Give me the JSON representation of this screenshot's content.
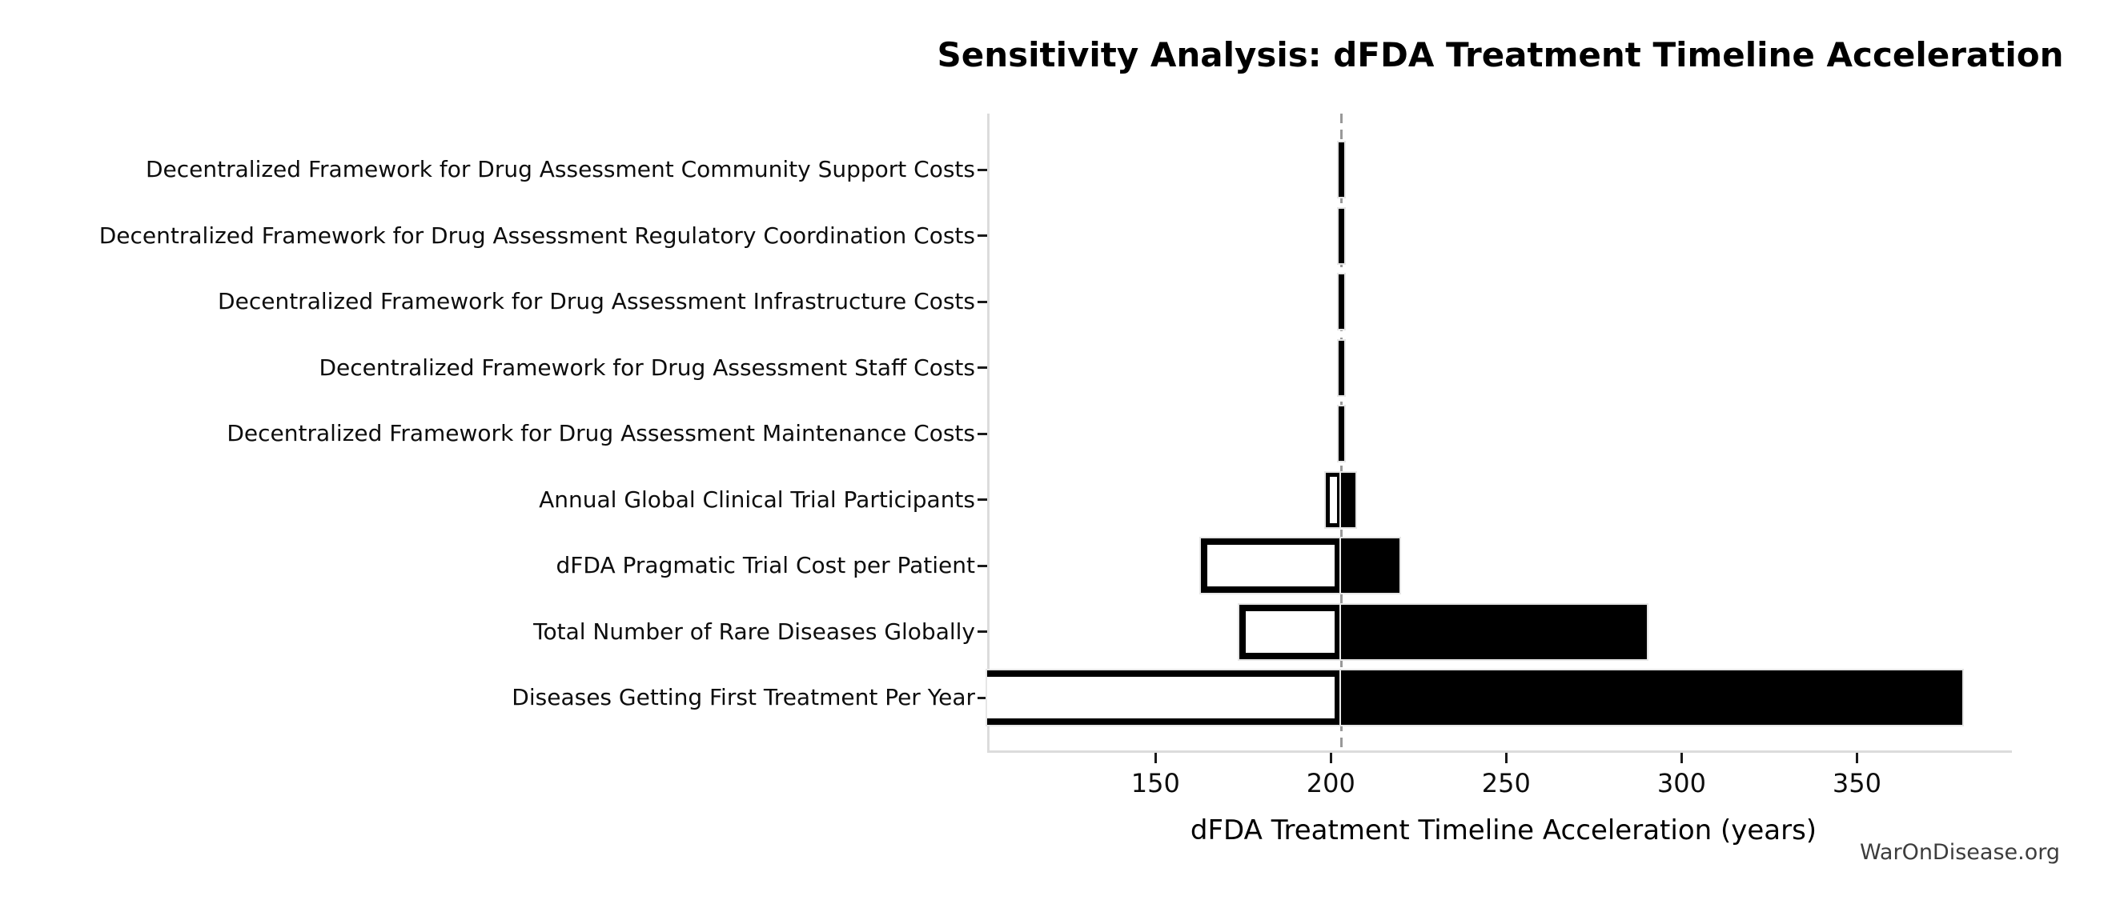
{
  "title": "Sensitivity Analysis: dFDA Treatment Timeline Acceleration",
  "watermark": "WarOnDisease.org",
  "colors": {
    "background": "#ffffff",
    "bar_high_fill": "#000000",
    "bar_low_fill": "#ffffff",
    "bar_border": "#000000",
    "baseline_dash": "#999999",
    "spine": "#dcdcdc",
    "tick": "#1a1a1a",
    "watermark_text": "#3d3d3d"
  },
  "chart_data": {
    "type": "bar",
    "subtype": "tornado-sensitivity",
    "orientation": "horizontal",
    "title": "Sensitivity Analysis: dFDA Treatment Timeline Acceleration",
    "xlabel": "dFDA Treatment Timeline Acceleration (years)",
    "ylabel": "",
    "x_ticks": [
      150,
      200,
      250,
      300,
      350
    ],
    "xlim": [
      102,
      393.5
    ],
    "baseline": 203,
    "baseline_style": "dashed-gray-vertical",
    "grid": false,
    "legend": "none",
    "categories": [
      "Decentralized Framework for Drug Assessment Community Support Costs",
      "Decentralized Framework for Drug Assessment Regulatory Coordination Costs",
      "Decentralized Framework for Drug Assessment Infrastructure Costs",
      "Decentralized Framework for Drug Assessment Staff Costs",
      "Decentralized Framework for Drug Assessment Maintenance Costs",
      "Annual Global Clinical Trial Participants",
      "dFDA Pragmatic Trial Cost per Patient",
      "Total Number of Rare Diseases Globally",
      "Diseases Getting First Treatment Per Year"
    ],
    "series": [
      {
        "name": "low-end (white bar, left of baseline)",
        "values": [
          202.2,
          202.2,
          202.2,
          202.2,
          202.2,
          198.5,
          163,
          174,
          102
        ]
      },
      {
        "name": "high-end (black bar, right of baseline)",
        "values": [
          203.8,
          203.8,
          203.8,
          203.8,
          203.8,
          207,
          219.5,
          290,
          380
        ]
      }
    ],
    "notes": "Rows 1-5 have negligible ranges rendered as thin black slivers on the baseline; last row's white bar is clipped by the left axis edge at x=102."
  }
}
